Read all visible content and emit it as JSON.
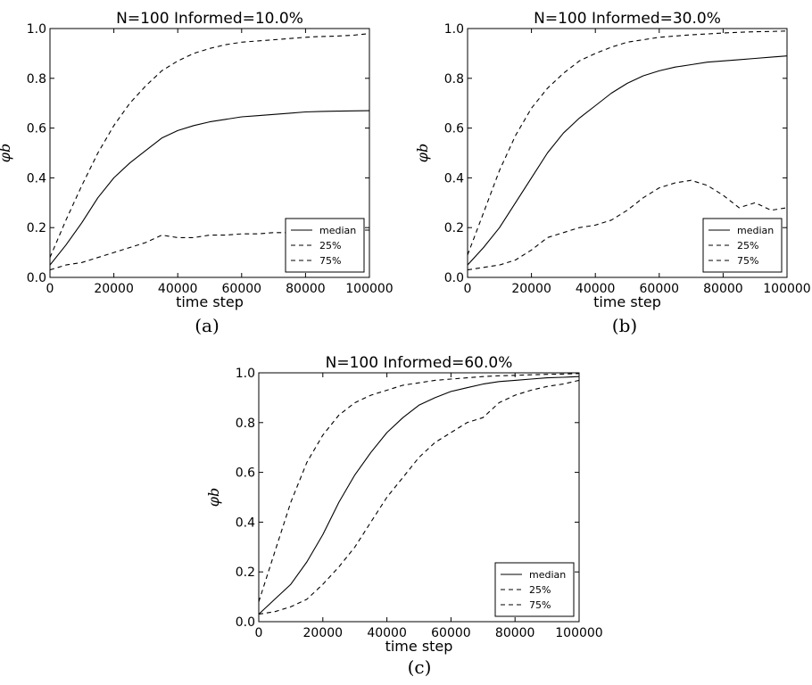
{
  "chart_data": [
    {
      "type": "line",
      "title": "N=100   Informed=10.0%",
      "xlabel": "time step",
      "ylabel": "φb",
      "caption": "(a)",
      "xlim": [
        0,
        100000
      ],
      "ylim": [
        0.0,
        1.0
      ],
      "xticks": [
        "0",
        "20000",
        "40000",
        "60000",
        "80000",
        "100000"
      ],
      "yticks": [
        "0.0",
        "0.2",
        "0.4",
        "0.6",
        "0.8",
        "1.0"
      ],
      "legend_position": "bottom-right",
      "grid": false,
      "x": [
        0,
        5000,
        10000,
        15000,
        20000,
        25000,
        30000,
        35000,
        40000,
        45000,
        50000,
        55000,
        60000,
        65000,
        70000,
        75000,
        80000,
        85000,
        90000,
        95000,
        100000
      ],
      "series": [
        {
          "name": "median",
          "style": "solid",
          "values": [
            0.05,
            0.13,
            0.22,
            0.32,
            0.4,
            0.46,
            0.51,
            0.56,
            0.59,
            0.61,
            0.625,
            0.635,
            0.645,
            0.65,
            0.655,
            0.66,
            0.665,
            0.667,
            0.668,
            0.669,
            0.67
          ]
        },
        {
          "name": "25%",
          "style": "dashed",
          "values": [
            0.03,
            0.05,
            0.06,
            0.08,
            0.1,
            0.12,
            0.14,
            0.17,
            0.16,
            0.16,
            0.17,
            0.17,
            0.175,
            0.175,
            0.18,
            0.18,
            0.185,
            0.185,
            0.19,
            0.19,
            0.19
          ]
        },
        {
          "name": "75%",
          "style": "dashed",
          "values": [
            0.08,
            0.23,
            0.37,
            0.5,
            0.61,
            0.7,
            0.77,
            0.83,
            0.87,
            0.9,
            0.92,
            0.935,
            0.945,
            0.95,
            0.955,
            0.96,
            0.965,
            0.968,
            0.97,
            0.973,
            0.98
          ]
        }
      ]
    },
    {
      "type": "line",
      "title": "N=100   Informed=30.0%",
      "xlabel": "time step",
      "ylabel": "φb",
      "caption": "(b)",
      "xlim": [
        0,
        100000
      ],
      "ylim": [
        0.0,
        1.0
      ],
      "xticks": [
        "0",
        "20000",
        "40000",
        "60000",
        "80000",
        "100000"
      ],
      "yticks": [
        "0.0",
        "0.2",
        "0.4",
        "0.6",
        "0.8",
        "1.0"
      ],
      "legend_position": "bottom-right",
      "grid": false,
      "x": [
        0,
        5000,
        10000,
        15000,
        20000,
        25000,
        30000,
        35000,
        40000,
        45000,
        50000,
        55000,
        60000,
        65000,
        70000,
        75000,
        80000,
        85000,
        90000,
        95000,
        100000
      ],
      "series": [
        {
          "name": "median",
          "style": "solid",
          "values": [
            0.05,
            0.12,
            0.2,
            0.3,
            0.4,
            0.5,
            0.58,
            0.64,
            0.69,
            0.74,
            0.78,
            0.81,
            0.83,
            0.845,
            0.855,
            0.865,
            0.87,
            0.875,
            0.88,
            0.885,
            0.89
          ]
        },
        {
          "name": "25%",
          "style": "dashed",
          "values": [
            0.03,
            0.04,
            0.05,
            0.07,
            0.11,
            0.16,
            0.18,
            0.2,
            0.21,
            0.23,
            0.27,
            0.32,
            0.36,
            0.38,
            0.39,
            0.37,
            0.33,
            0.28,
            0.3,
            0.27,
            0.28
          ]
        },
        {
          "name": "75%",
          "style": "dashed",
          "values": [
            0.09,
            0.26,
            0.43,
            0.57,
            0.68,
            0.76,
            0.82,
            0.87,
            0.9,
            0.925,
            0.945,
            0.955,
            0.965,
            0.97,
            0.975,
            0.978,
            0.982,
            0.985,
            0.987,
            0.988,
            0.99
          ]
        }
      ]
    },
    {
      "type": "line",
      "title": "N=100   Informed=60.0%",
      "xlabel": "time step",
      "ylabel": "φb",
      "caption": "(c)",
      "xlim": [
        0,
        100000
      ],
      "ylim": [
        0.0,
        1.0
      ],
      "xticks": [
        "0",
        "20000",
        "40000",
        "60000",
        "80000",
        "100000"
      ],
      "yticks": [
        "0.0",
        "0.2",
        "0.4",
        "0.6",
        "0.8",
        "1.0"
      ],
      "legend_position": "bottom-right",
      "grid": false,
      "x": [
        0,
        5000,
        10000,
        15000,
        20000,
        25000,
        30000,
        35000,
        40000,
        45000,
        50000,
        55000,
        60000,
        65000,
        70000,
        75000,
        80000,
        85000,
        90000,
        95000,
        100000
      ],
      "series": [
        {
          "name": "median",
          "style": "solid",
          "values": [
            0.03,
            0.09,
            0.15,
            0.24,
            0.35,
            0.48,
            0.59,
            0.68,
            0.76,
            0.82,
            0.87,
            0.9,
            0.925,
            0.94,
            0.955,
            0.965,
            0.97,
            0.975,
            0.98,
            0.982,
            0.985
          ]
        },
        {
          "name": "25%",
          "style": "dashed",
          "values": [
            0.03,
            0.04,
            0.06,
            0.09,
            0.15,
            0.22,
            0.3,
            0.4,
            0.5,
            0.58,
            0.66,
            0.72,
            0.76,
            0.8,
            0.82,
            0.88,
            0.91,
            0.93,
            0.945,
            0.955,
            0.97
          ]
        },
        {
          "name": "75%",
          "style": "dashed",
          "values": [
            0.08,
            0.28,
            0.48,
            0.64,
            0.75,
            0.83,
            0.88,
            0.91,
            0.93,
            0.95,
            0.96,
            0.97,
            0.975,
            0.98,
            0.985,
            0.988,
            0.99,
            0.992,
            0.994,
            0.995,
            0.997
          ]
        }
      ]
    }
  ]
}
